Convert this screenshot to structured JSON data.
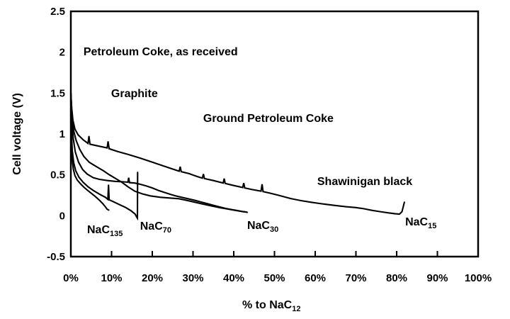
{
  "figure": {
    "background": "#ffffff",
    "ink": "#000000"
  },
  "chart_data": {
    "type": "line",
    "title": "",
    "ylabel": "Cell voltage (V)",
    "xlabel": {
      "main": "% to NaC",
      "sub": "12"
    },
    "xlim_percent": [
      0,
      100
    ],
    "ylim": [
      -0.5,
      2.5
    ],
    "grid": false,
    "legend_position": "none",
    "x_ticks": [
      {
        "pct": 0,
        "label": "0%",
        "mark": false
      },
      {
        "pct": 10,
        "label": "10%",
        "mark": true
      },
      {
        "pct": 20,
        "label": "20%",
        "mark": true
      },
      {
        "pct": 30,
        "label": "30%",
        "mark": true
      },
      {
        "pct": 40,
        "label": "40%",
        "mark": true
      },
      {
        "pct": 50,
        "label": "50%",
        "mark": true
      },
      {
        "pct": 60,
        "label": "60%",
        "mark": true
      },
      {
        "pct": 70,
        "label": "70%",
        "mark": true
      },
      {
        "pct": 80,
        "label": "80%",
        "mark": true
      },
      {
        "pct": 90,
        "label": "90%",
        "mark": true
      },
      {
        "pct": 100,
        "label": "100%",
        "mark": false
      }
    ],
    "y_ticks": [
      {
        "v": 2.5,
        "label": "2.5"
      },
      {
        "v": 2,
        "label": "2"
      },
      {
        "v": 1.5,
        "label": "1.5"
      },
      {
        "v": 1,
        "label": "1"
      },
      {
        "v": 0.5,
        "label": "0.5"
      },
      {
        "v": 0,
        "label": "0"
      },
      {
        "v": -0.5,
        "label": "-0.5"
      }
    ],
    "material_labels": [
      {
        "text": "Petroleum Coke, as received",
        "x_pct": 3.1,
        "v": 1.962
      },
      {
        "text": "Graphite",
        "x_pct": 9.9,
        "v": 1.451
      },
      {
        "text": "Ground Petroleum Coke",
        "x_pct": 32.5,
        "v": 1.147
      },
      {
        "text": "Shawinigan black",
        "x_pct": 60.5,
        "v": 0.375
      }
    ],
    "series": [
      {
        "id": "curve-nac15",
        "end_label": {
          "main": "NaC",
          "sub": "15",
          "x_pct": 82.1,
          "v": -0.119
        },
        "points": [
          [
            0,
            1.5
          ],
          [
            0.2,
            1.32
          ],
          [
            0.5,
            1.17
          ],
          [
            1,
            1.06
          ],
          [
            1.8,
            0.99
          ],
          [
            3,
            0.93
          ],
          [
            4.2,
            0.885
          ],
          [
            4.45,
            0.975
          ],
          [
            4.7,
            0.875
          ],
          [
            6.5,
            0.855
          ],
          [
            8.9,
            0.83
          ],
          [
            9.15,
            0.91
          ],
          [
            9.4,
            0.82
          ],
          [
            11.5,
            0.785
          ],
          [
            14,
            0.75
          ],
          [
            17,
            0.705
          ],
          [
            20,
            0.655
          ],
          [
            23,
            0.605
          ],
          [
            26.6,
            0.545
          ],
          [
            26.85,
            0.6
          ],
          [
            27.1,
            0.54
          ],
          [
            29,
            0.515
          ],
          [
            31,
            0.48
          ],
          [
            32.3,
            0.46
          ],
          [
            32.55,
            0.51
          ],
          [
            32.8,
            0.455
          ],
          [
            35,
            0.43
          ],
          [
            37.4,
            0.4
          ],
          [
            37.65,
            0.455
          ],
          [
            37.9,
            0.395
          ],
          [
            40,
            0.37
          ],
          [
            42.2,
            0.345
          ],
          [
            42.45,
            0.4
          ],
          [
            42.7,
            0.34
          ],
          [
            44.5,
            0.32
          ],
          [
            46.7,
            0.3
          ],
          [
            46.95,
            0.385
          ],
          [
            47.2,
            0.295
          ],
          [
            49,
            0.275
          ],
          [
            51,
            0.25
          ],
          [
            54,
            0.21
          ],
          [
            56.5,
            0.185
          ],
          [
            59,
            0.165
          ],
          [
            61,
            0.15
          ],
          [
            62.6,
            0.14
          ],
          [
            65,
            0.125
          ],
          [
            67.5,
            0.11
          ],
          [
            70,
            0.1
          ],
          [
            72,
            0.085
          ],
          [
            74,
            0.065
          ],
          [
            76,
            0.05
          ],
          [
            78,
            0.035
          ],
          [
            79.5,
            0.025
          ],
          [
            80.7,
            0.02
          ],
          [
            81.3,
            0.05
          ],
          [
            81.9,
            0.165
          ]
        ]
      },
      {
        "id": "curve-nac30-a",
        "end_label": {
          "main": "NaC",
          "sub": "30",
          "x_pct": 43.3,
          "v": -0.162
        },
        "points": [
          [
            0,
            1.5
          ],
          [
            0.25,
            1.14
          ],
          [
            0.6,
            0.94
          ],
          [
            1.1,
            0.78
          ],
          [
            1.9,
            0.655
          ],
          [
            2.9,
            0.565
          ],
          [
            4,
            0.51
          ],
          [
            5.5,
            0.465
          ],
          [
            7,
            0.445
          ],
          [
            9,
            0.43
          ],
          [
            11,
            0.42
          ],
          [
            13,
            0.415
          ],
          [
            14,
            0.41
          ],
          [
            14.2,
            0.465
          ],
          [
            14.4,
            0.405
          ],
          [
            15.7,
            0.4
          ],
          [
            17,
            0.385
          ],
          [
            18.5,
            0.365
          ],
          [
            20,
            0.34
          ],
          [
            21.5,
            0.31
          ],
          [
            23,
            0.285
          ],
          [
            24.5,
            0.26
          ],
          [
            26,
            0.24
          ],
          [
            27.5,
            0.222
          ],
          [
            29,
            0.205
          ],
          [
            30.5,
            0.188
          ],
          [
            32,
            0.168
          ],
          [
            33.5,
            0.148
          ],
          [
            35,
            0.128
          ],
          [
            36.5,
            0.108
          ],
          [
            38,
            0.09
          ],
          [
            39.5,
            0.075
          ],
          [
            41,
            0.062
          ],
          [
            42.3,
            0.05
          ],
          [
            43.3,
            0.042
          ]
        ]
      },
      {
        "id": "curve-nac30-b",
        "end_label": null,
        "points": [
          [
            0,
            1.5
          ],
          [
            0.3,
            1.22
          ],
          [
            0.7,
            1.04
          ],
          [
            1.3,
            0.92
          ],
          [
            2.2,
            0.81
          ],
          [
            3.2,
            0.725
          ],
          [
            4.5,
            0.655
          ],
          [
            6.3,
            0.6
          ],
          [
            8,
            0.55
          ],
          [
            9.5,
            0.5
          ],
          [
            11,
            0.455
          ],
          [
            12.5,
            0.41
          ],
          [
            14,
            0.355
          ],
          [
            15.7,
            0.3
          ],
          [
            17.5,
            0.268
          ],
          [
            19.5,
            0.243
          ],
          [
            22,
            0.226
          ],
          [
            24.5,
            0.216
          ],
          [
            26.5,
            0.208
          ],
          [
            28.5,
            0.188
          ],
          [
            30.5,
            0.165
          ],
          [
            32.5,
            0.142
          ],
          [
            34.5,
            0.12
          ],
          [
            36.5,
            0.1
          ],
          [
            38.5,
            0.082
          ],
          [
            40.5,
            0.065
          ],
          [
            42,
            0.052
          ],
          [
            43.1,
            0.045
          ]
        ]
      },
      {
        "id": "curve-nac70",
        "end_label": {
          "main": "NaC",
          "sub": "70",
          "x_pct": 17.0,
          "v": -0.171
        },
        "points": [
          [
            0,
            1.5
          ],
          [
            0.15,
            1.02
          ],
          [
            0.35,
            0.8
          ],
          [
            0.7,
            0.65
          ],
          [
            1.2,
            0.55
          ],
          [
            2,
            0.47
          ],
          [
            3,
            0.41
          ],
          [
            4.2,
            0.355
          ],
          [
            5.5,
            0.31
          ],
          [
            7,
            0.265
          ],
          [
            8.5,
            0.225
          ],
          [
            9.1,
            0.2
          ],
          [
            9.25,
            0.38
          ],
          [
            9.4,
            0.195
          ],
          [
            10.5,
            0.17
          ],
          [
            12,
            0.135
          ],
          [
            13.5,
            0.1
          ],
          [
            14.8,
            0.06
          ],
          [
            15.8,
            0.02
          ],
          [
            16.2,
            -0.02
          ],
          [
            16.35,
            -0.03
          ],
          [
            16.4,
            0.53
          ]
        ]
      },
      {
        "id": "curve-nac135",
        "end_label": {
          "main": "NaC",
          "sub": "135",
          "x_pct": 4.0,
          "v": -0.214
        },
        "points": [
          [
            0,
            1.5
          ],
          [
            0.1,
            0.92
          ],
          [
            0.3,
            0.7
          ],
          [
            0.6,
            0.57
          ],
          [
            1,
            0.49
          ],
          [
            1.6,
            0.435
          ],
          [
            2.4,
            0.39
          ],
          [
            3.2,
            0.35
          ],
          [
            4,
            0.315
          ],
          [
            5,
            0.275
          ],
          [
            6,
            0.235
          ],
          [
            7,
            0.19
          ],
          [
            7.8,
            0.15
          ],
          [
            8.4,
            0.115
          ],
          [
            8.9,
            0.08
          ],
          [
            9.3,
            0.07
          ]
        ]
      }
    ]
  }
}
